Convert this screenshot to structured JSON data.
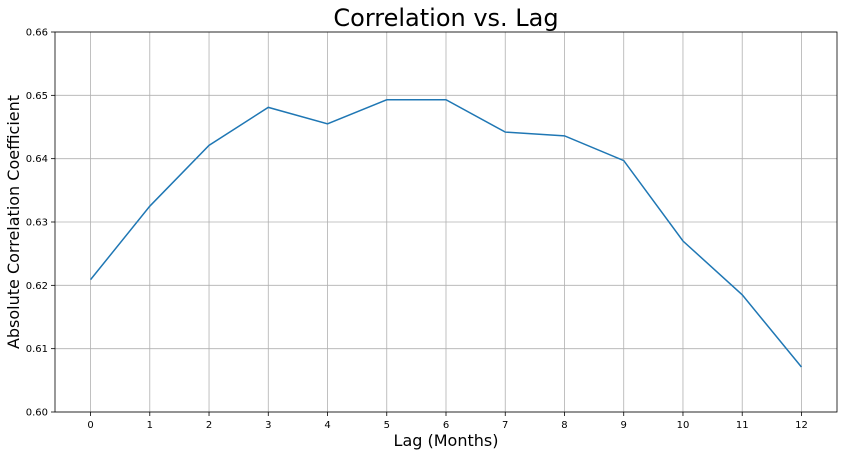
{
  "chart_data": {
    "type": "line",
    "title": "Correlation vs. Lag",
    "xlabel": "Lag (Months)",
    "ylabel": "Absolute Correlation Coefficient",
    "x": [
      0,
      1,
      2,
      3,
      4,
      5,
      6,
      7,
      8,
      9,
      10,
      11,
      12
    ],
    "series": [
      {
        "values": [
          0.6209,
          0.6325,
          0.6421,
          0.6481,
          0.6455,
          0.6493,
          0.6493,
          0.6442,
          0.6436,
          0.6397,
          0.627,
          0.6185,
          0.6071
        ],
        "color": "#1f77b4"
      }
    ],
    "xticks": [
      "0",
      "1",
      "2",
      "3",
      "4",
      "5",
      "6",
      "7",
      "8",
      "9",
      "10",
      "11",
      "12"
    ],
    "yticks": [
      "0.60",
      "0.61",
      "0.62",
      "0.63",
      "0.64",
      "0.65",
      "0.66"
    ],
    "xlim": [
      -0.6,
      12.6
    ],
    "ylim": [
      0.6,
      0.66
    ],
    "grid": true,
    "legend": "none"
  }
}
